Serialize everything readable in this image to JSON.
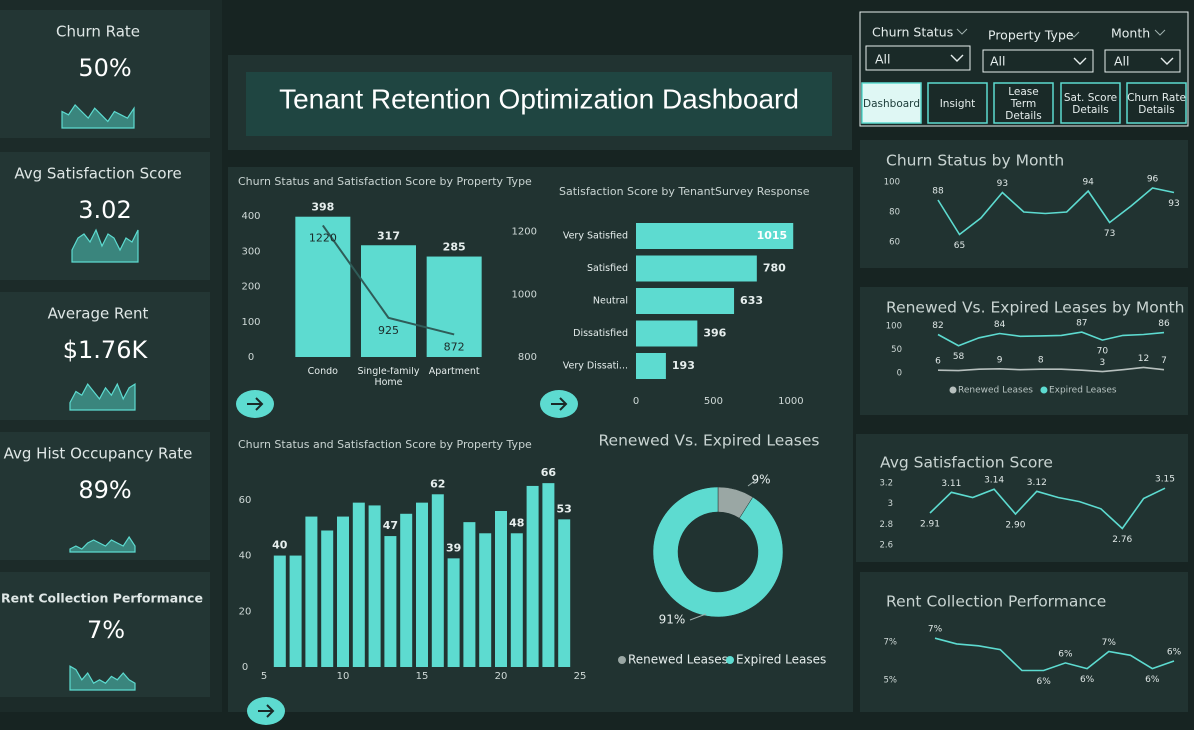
{
  "title": "Tenant Retention Optimization Dashboard",
  "kpis": [
    {
      "label": "Churn Rate",
      "value": "50%",
      "sparkline": [
        5,
        4,
        7,
        5,
        3,
        6,
        4,
        2,
        5,
        4,
        3,
        6
      ]
    },
    {
      "label": "Avg Satisfaction Score",
      "value": "3.02",
      "sparkline": [
        3,
        6,
        7,
        5,
        8,
        4,
        7,
        6,
        3,
        6,
        5,
        8
      ]
    },
    {
      "label": "Average Rent",
      "value": "$1.76K",
      "sparkline": [
        2,
        5,
        4,
        7,
        5,
        3,
        6,
        4,
        7,
        3,
        6,
        7
      ]
    },
    {
      "label": "Avg Hist Occupancy Rate",
      "value": "89%",
      "sparkline": [
        1,
        2,
        1,
        3,
        4,
        3,
        2,
        4,
        3,
        2,
        5,
        2
      ]
    },
    {
      "label": "Rent Collection Performance",
      "value": "7%",
      "sparkline": [
        7,
        6,
        3,
        5,
        2,
        3,
        2,
        4,
        3,
        5,
        3,
        2
      ]
    }
  ],
  "filters": [
    {
      "label": "Churn Status",
      "value": "All"
    },
    {
      "label": "Property Type",
      "value": "All"
    },
    {
      "label": "Month",
      "value": "All"
    }
  ],
  "buttons": [
    "Dashboard",
    "Insight",
    "Lease Term Details",
    "Sat. Score Details",
    "Churn Rate Details"
  ],
  "chart_data": [
    {
      "type": "combo",
      "title": "Churn Status and Satisfaction Score by Property Type",
      "categories": [
        "Condo",
        "Single-family Home",
        "Apartment"
      ],
      "series": [
        {
          "type": "bar",
          "color": "#5ddbd0",
          "values": [
            398,
            317,
            285
          ]
        },
        {
          "type": "line",
          "axis": "y2",
          "color": "#2f5c58",
          "values": [
            1220,
            925,
            872
          ]
        }
      ],
      "ylim": [
        0,
        400
      ],
      "yticks": [
        0,
        100,
        200,
        300,
        400
      ],
      "y2lim": [
        800,
        1250
      ],
      "y2ticks": [
        800,
        1000,
        1200
      ]
    },
    {
      "type": "hbar",
      "title": "Satisfaction Score by TenantSurvey Response",
      "categories": [
        "Very Satisfied",
        "Satisfied",
        "Neutral",
        "Dissatisfied",
        "Very Dissati..."
      ],
      "values": [
        1015,
        780,
        633,
        396,
        193
      ],
      "color": "#5ddbd0",
      "xlim": [
        0,
        1020
      ],
      "xticks": [
        0,
        500,
        1000
      ]
    },
    {
      "type": "bar",
      "title": "Churn Status and Satisfaction Score by Property Type",
      "x": [
        6,
        7,
        8,
        9,
        10,
        11,
        12,
        13,
        14,
        15,
        16,
        17,
        18,
        19,
        20,
        21,
        22,
        23,
        24
      ],
      "values": [
        40,
        40,
        54,
        49,
        54,
        59,
        58,
        47,
        55,
        59,
        62,
        39,
        52,
        48,
        56,
        48,
        65,
        66,
        53
      ],
      "value_labels": [
        "40",
        null,
        null,
        null,
        null,
        null,
        null,
        "47",
        null,
        null,
        "62",
        "39",
        null,
        null,
        null,
        "48",
        null,
        "66",
        "53"
      ],
      "color": "#5ddbd0",
      "xlim": [
        5,
        25
      ],
      "xticks": [
        5,
        10,
        15,
        20,
        25
      ],
      "ylim": [
        0,
        70
      ],
      "yticks": [
        0,
        20,
        40,
        60
      ]
    },
    {
      "type": "donut",
      "title": "Renewed Vs. Expired Leases",
      "categories": [
        "Renewed Leases",
        "Expired Leases"
      ],
      "values": [
        9,
        91
      ],
      "value_labels": [
        "9%",
        "91%"
      ],
      "colors": [
        "#9aa7a4",
        "#5ddbd0"
      ]
    },
    {
      "type": "line",
      "title": "Churn Status by Month",
      "values": [
        88,
        65,
        76,
        93,
        80,
        79,
        80,
        94,
        73,
        84,
        96,
        93
      ],
      "value_labels": [
        "88",
        "65",
        null,
        "93",
        null,
        null,
        null,
        "94",
        "73",
        null,
        "96",
        "93"
      ],
      "color": "#5ddbd0",
      "ylim": [
        55,
        100
      ],
      "yticks": [
        60,
        80,
        100
      ]
    },
    {
      "type": "line",
      "title": "Renewed Vs. Expired Leases by Month",
      "series": [
        {
          "name": "Renewed Leases",
          "color": "#b7c0be",
          "values": [
            6,
            5,
            8,
            9,
            7,
            8,
            8,
            6,
            3,
            7,
            12,
            7
          ],
          "value_labels": [
            "6",
            null,
            null,
            "9",
            null,
            "8",
            null,
            null,
            "3",
            null,
            "12",
            "7"
          ]
        },
        {
          "name": "Expired Leases",
          "color": "#5ddbd0",
          "values": [
            82,
            58,
            75,
            84,
            78,
            79,
            80,
            87,
            70,
            80,
            82,
            86
          ],
          "value_labels": [
            "82",
            "58",
            null,
            "84",
            null,
            null,
            null,
            "87",
            "70",
            null,
            null,
            "86"
          ]
        }
      ],
      "ylim": [
        0,
        100
      ],
      "yticks": [
        0,
        50,
        100
      ]
    },
    {
      "type": "line",
      "title": "Avg Satisfaction Score",
      "values": [
        2.91,
        3.11,
        3.06,
        3.14,
        2.9,
        3.12,
        3.06,
        3.02,
        2.95,
        2.76,
        3.05,
        3.15
      ],
      "value_labels": [
        "2.91",
        "3.11",
        null,
        "3.14",
        "2.90",
        "3.12",
        null,
        null,
        null,
        "2.76",
        null,
        "3.15"
      ],
      "color": "#5ddbd0",
      "ylim": [
        2.6,
        3.2
      ],
      "yticks": [
        2.6,
        2.8,
        3.0,
        3.2
      ]
    },
    {
      "type": "line",
      "title": "Rent Collection Performance",
      "values": [
        7.2,
        6.9,
        6.8,
        6.6,
        5.5,
        5.5,
        5.9,
        5.6,
        6.5,
        6.3,
        5.6,
        6.0
      ],
      "value_labels": [
        "7%",
        null,
        null,
        null,
        null,
        "6%",
        "6%",
        "6%",
        "7%",
        null,
        "6%",
        "6%"
      ],
      "color": "#5ddbd0",
      "ylim": [
        5,
        7.5
      ],
      "yticks": [
        {
          "value": 5,
          "label": "5%"
        },
        {
          "value": 7,
          "label": "7%"
        }
      ]
    }
  ]
}
